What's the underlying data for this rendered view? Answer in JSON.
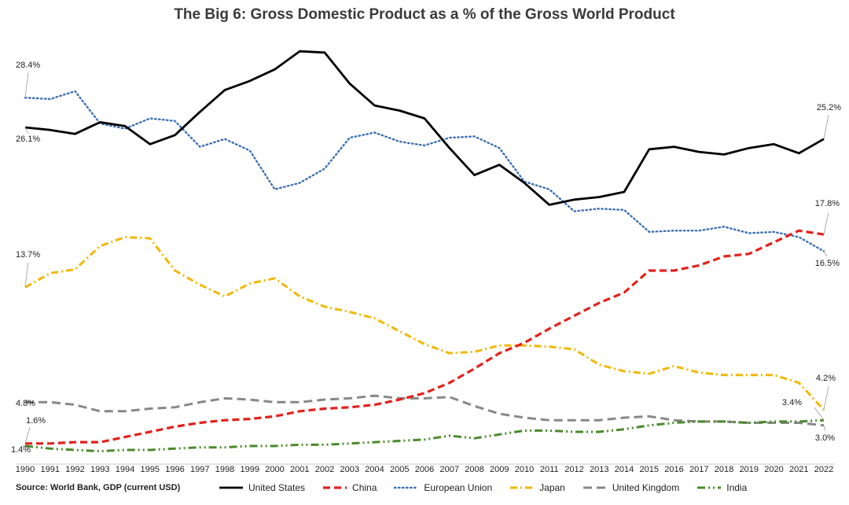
{
  "chart_data": {
    "type": "line",
    "title": "The Big 6: Gross Domestic Product as a % of the Gross World Product",
    "xlabel": "",
    "ylabel": "",
    "ylim": [
      0,
      31
    ],
    "grid": false,
    "legend_position": "bottom",
    "x": [
      "1990",
      "1991",
      "1992",
      "1993",
      "1994",
      "1995",
      "1996",
      "1997",
      "1998",
      "1999",
      "2000",
      "2001",
      "2002",
      "2003",
      "2004",
      "2005",
      "2006",
      "2007",
      "2008",
      "2009",
      "2010",
      "2011",
      "2012",
      "2013",
      "2014",
      "2015",
      "2016",
      "2017",
      "2018",
      "2019",
      "2020",
      "2021",
      "2022"
    ],
    "series": [
      {
        "name": "United States",
        "color": "#000000",
        "dash": "solid",
        "values": [
          26.1,
          25.9,
          25.6,
          26.5,
          26.2,
          24.8,
          25.5,
          27.3,
          29.0,
          29.7,
          30.6,
          32.0,
          31.9,
          29.5,
          27.8,
          27.4,
          26.8,
          24.5,
          22.4,
          23.2,
          21.8,
          20.1,
          20.5,
          20.7,
          21.1,
          24.4,
          24.6,
          24.2,
          24.0,
          24.5,
          24.8,
          24.1,
          25.2
        ]
      },
      {
        "name": "China",
        "color": "#e3211c",
        "dash": "dashed",
        "values": [
          1.6,
          1.6,
          1.7,
          1.7,
          2.1,
          2.5,
          2.9,
          3.2,
          3.4,
          3.5,
          3.7,
          4.1,
          4.3,
          4.4,
          4.6,
          5.0,
          5.5,
          6.3,
          7.4,
          8.6,
          9.4,
          10.5,
          11.5,
          12.5,
          13.3,
          15.0,
          15.0,
          15.4,
          16.1,
          16.3,
          17.2,
          18.1,
          17.8
        ]
      },
      {
        "name": "European Union",
        "color": "#3c6fb4",
        "dash": "dotted",
        "values": [
          28.4,
          28.3,
          28.9,
          26.4,
          26.0,
          26.8,
          26.6,
          24.6,
          25.2,
          24.3,
          21.3,
          21.8,
          22.9,
          25.3,
          25.7,
          25.0,
          24.7,
          25.3,
          25.4,
          24.5,
          21.9,
          21.3,
          19.6,
          19.8,
          19.7,
          18.0,
          18.1,
          18.1,
          18.4,
          17.9,
          18.0,
          17.6,
          16.5
        ]
      },
      {
        "name": "Japan",
        "color": "#f2b705",
        "dash": "dashdot",
        "values": [
          13.7,
          14.8,
          15.1,
          16.9,
          17.6,
          17.5,
          15.0,
          13.9,
          13.0,
          14.0,
          14.4,
          13.0,
          12.2,
          11.8,
          11.3,
          10.3,
          9.3,
          8.6,
          8.7,
          9.2,
          9.2,
          9.1,
          8.9,
          7.7,
          7.2,
          7.0,
          7.6,
          7.1,
          6.9,
          6.9,
          6.9,
          6.3,
          4.2
        ]
      },
      {
        "name": "United Kingdom",
        "color": "#888888",
        "dash": "longdash",
        "values": [
          4.8,
          4.8,
          4.6,
          4.1,
          4.1,
          4.3,
          4.4,
          4.8,
          5.1,
          5.0,
          4.8,
          4.8,
          5.0,
          5.1,
          5.3,
          5.1,
          5.1,
          5.2,
          4.5,
          3.9,
          3.6,
          3.4,
          3.4,
          3.4,
          3.6,
          3.7,
          3.4,
          3.3,
          3.3,
          3.2,
          3.2,
          3.2,
          3.0
        ]
      },
      {
        "name": "India",
        "color": "#4a8a2a",
        "dash": "dashdotdot",
        "values": [
          1.4,
          1.2,
          1.1,
          1.0,
          1.1,
          1.1,
          1.2,
          1.3,
          1.3,
          1.4,
          1.4,
          1.5,
          1.5,
          1.6,
          1.7,
          1.8,
          1.9,
          2.2,
          2.0,
          2.3,
          2.6,
          2.6,
          2.5,
          2.5,
          2.7,
          3.0,
          3.2,
          3.3,
          3.3,
          3.2,
          3.3,
          3.3,
          3.4
        ]
      }
    ],
    "annotations": [
      {
        "text": "28.4%",
        "series": "European Union",
        "point": "start"
      },
      {
        "text": "26.1%",
        "series": "United States",
        "point": "start"
      },
      {
        "text": "13.7%",
        "series": "Japan",
        "point": "start"
      },
      {
        "text": "4.8%",
        "series": "United Kingdom",
        "point": "start"
      },
      {
        "text": "1.6%",
        "series": "China",
        "point": "start"
      },
      {
        "text": "1.4%",
        "series": "India",
        "point": "start"
      },
      {
        "text": "25.2%",
        "series": "United States",
        "point": "end"
      },
      {
        "text": "17.8%",
        "series": "China",
        "point": "end"
      },
      {
        "text": "16.5%",
        "series": "European Union",
        "point": "end"
      },
      {
        "text": "4.2%",
        "series": "Japan",
        "point": "end"
      },
      {
        "text": "3.4%",
        "series": "India",
        "point": "end"
      },
      {
        "text": "3.0%",
        "series": "United Kingdom",
        "point": "end"
      }
    ],
    "source": "Source: World Bank, GDP (current USD)"
  }
}
